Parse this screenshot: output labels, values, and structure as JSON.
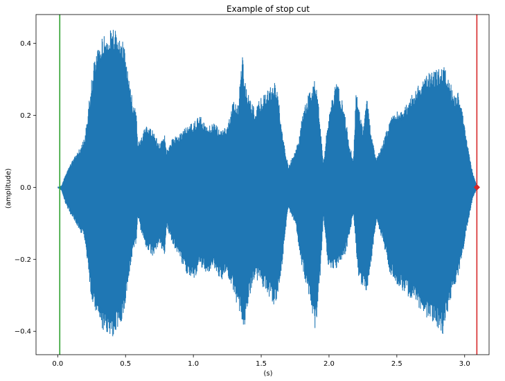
{
  "chart_data": {
    "type": "area",
    "title": "Example of stop cut",
    "xlabel": "(s)",
    "ylabel": "(amplitude)",
    "xlim": [
      -0.16,
      3.18
    ],
    "ylim": [
      -0.465,
      0.48
    ],
    "xticks": [
      0.0,
      0.5,
      1.0,
      1.5,
      2.0,
      2.5,
      3.0
    ],
    "xtick_labels": [
      "0.0",
      "0.5",
      "1.0",
      "1.5",
      "2.0",
      "2.5",
      "3.0"
    ],
    "yticks": [
      -0.4,
      -0.2,
      0.0,
      0.2,
      0.4
    ],
    "ytick_labels": [
      "−0.4",
      "−0.2",
      "0.0",
      "0.2",
      "0.4"
    ],
    "grid": false,
    "series": [
      {
        "color": "#1f77b4",
        "envelope_x": [
          0.0,
          0.03,
          0.06,
          0.1,
          0.15,
          0.2,
          0.25,
          0.28,
          0.32,
          0.36,
          0.4,
          0.44,
          0.47,
          0.5,
          0.53,
          0.56,
          0.58,
          0.59,
          0.61,
          0.65,
          0.7,
          0.75,
          0.79,
          0.8,
          0.85,
          0.9,
          0.95,
          1.0,
          1.05,
          1.1,
          1.15,
          1.2,
          1.25,
          1.3,
          1.33,
          1.36,
          1.38,
          1.4,
          1.45,
          1.5,
          1.55,
          1.6,
          1.63,
          1.65,
          1.68,
          1.7,
          1.75,
          1.78,
          1.8,
          1.85,
          1.88,
          1.9,
          1.93,
          1.96,
          1.99,
          2.02,
          2.05,
          2.08,
          2.12,
          2.15,
          2.18,
          2.2,
          2.22,
          2.25,
          2.28,
          2.31,
          2.35,
          2.4,
          2.45,
          2.5,
          2.55,
          2.6,
          2.65,
          2.7,
          2.75,
          2.8,
          2.84,
          2.88,
          2.92,
          2.95,
          2.98,
          3.0,
          3.03,
          3.06,
          3.09
        ],
        "envelope_upper": [
          0.0,
          0.005,
          0.04,
          0.07,
          0.1,
          0.14,
          0.3,
          0.38,
          0.41,
          0.43,
          0.45,
          0.44,
          0.43,
          0.37,
          0.29,
          0.23,
          0.21,
          0.12,
          0.14,
          0.17,
          0.16,
          0.12,
          0.15,
          0.1,
          0.14,
          0.15,
          0.17,
          0.18,
          0.2,
          0.17,
          0.18,
          0.16,
          0.17,
          0.25,
          0.23,
          0.38,
          0.3,
          0.27,
          0.22,
          0.25,
          0.27,
          0.3,
          0.25,
          0.17,
          0.1,
          0.06,
          0.1,
          0.14,
          0.2,
          0.26,
          0.28,
          0.31,
          0.2,
          0.07,
          0.18,
          0.24,
          0.3,
          0.27,
          0.2,
          0.12,
          0.08,
          0.28,
          0.22,
          0.16,
          0.25,
          0.15,
          0.08,
          0.13,
          0.19,
          0.21,
          0.22,
          0.25,
          0.28,
          0.31,
          0.32,
          0.33,
          0.34,
          0.31,
          0.26,
          0.27,
          0.22,
          0.17,
          0.1,
          0.04,
          0.005
        ],
        "envelope_lower": [
          0.0,
          -0.01,
          -0.05,
          -0.08,
          -0.11,
          -0.15,
          -0.32,
          -0.35,
          -0.39,
          -0.41,
          -0.42,
          -0.4,
          -0.38,
          -0.32,
          -0.24,
          -0.18,
          -0.16,
          -0.08,
          -0.12,
          -0.17,
          -0.19,
          -0.16,
          -0.19,
          -0.11,
          -0.16,
          -0.2,
          -0.24,
          -0.26,
          -0.22,
          -0.24,
          -0.22,
          -0.26,
          -0.24,
          -0.3,
          -0.34,
          -0.37,
          -0.4,
          -0.33,
          -0.25,
          -0.27,
          -0.3,
          -0.33,
          -0.29,
          -0.23,
          -0.12,
          -0.06,
          -0.1,
          -0.17,
          -0.22,
          -0.3,
          -0.36,
          -0.4,
          -0.28,
          -0.08,
          -0.21,
          -0.24,
          -0.23,
          -0.21,
          -0.19,
          -0.14,
          -0.07,
          -0.17,
          -0.26,
          -0.28,
          -0.3,
          -0.21,
          -0.09,
          -0.16,
          -0.24,
          -0.27,
          -0.29,
          -0.31,
          -0.33,
          -0.36,
          -0.38,
          -0.39,
          -0.41,
          -0.34,
          -0.28,
          -0.26,
          -0.2,
          -0.15,
          -0.09,
          -0.03,
          -0.005
        ]
      }
    ],
    "vlines": [
      {
        "x": 0.015,
        "color": "#2ca02c"
      },
      {
        "x": 3.09,
        "color": "#d62728"
      }
    ],
    "marker": {
      "x": 3.09,
      "y": 0.0,
      "color": "#d62728"
    }
  }
}
